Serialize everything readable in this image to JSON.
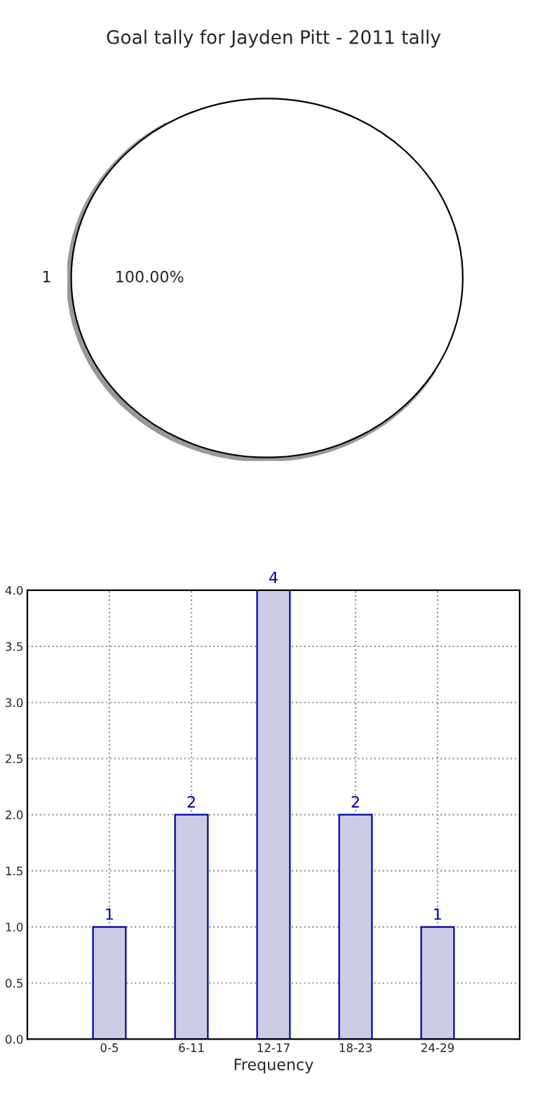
{
  "chart_data": [
    {
      "type": "pie",
      "title": "Goal tally for Jayden Pitt - 2011 tally",
      "categories": [
        "1"
      ],
      "values": [
        100
      ],
      "colors": [
        "#ffffff"
      ],
      "value_labels": [
        "100.00%"
      ]
    },
    {
      "type": "bar",
      "categories": [
        "0-5",
        "6-11",
        "12-17",
        "18-23",
        "24-29"
      ],
      "values": [
        1,
        2,
        4,
        2,
        1
      ],
      "color": "#cccce6",
      "xlabel": "Frequency",
      "ylim": [
        0,
        4
      ],
      "yticks": [
        {
          "value": 0,
          "label": "0.0"
        },
        {
          "value": 0.5,
          "label": "0.5"
        },
        {
          "value": 1,
          "label": "1.0"
        },
        {
          "value": 1.5,
          "label": "1.5"
        },
        {
          "value": 2,
          "label": "2.0"
        },
        {
          "value": 2.5,
          "label": "2.5"
        },
        {
          "value": 3,
          "label": "3.0"
        },
        {
          "value": 3.5,
          "label": "3.5"
        },
        {
          "value": 4,
          "label": "4.0"
        }
      ],
      "grid": true,
      "data_labels": true
    }
  ]
}
